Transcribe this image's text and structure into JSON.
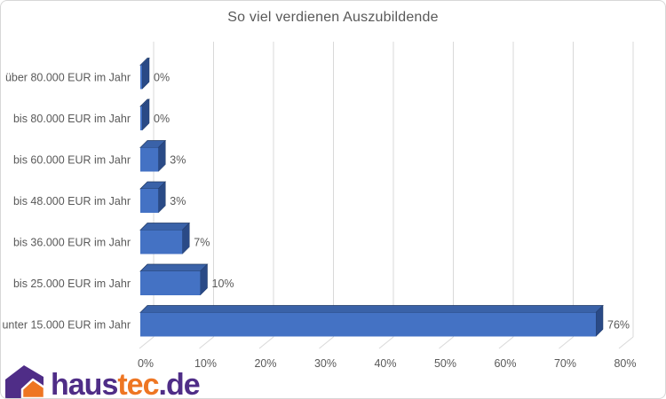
{
  "chart_data": {
    "type": "bar",
    "orientation": "horizontal",
    "style": "3d",
    "title": "So viel verdienen Auszubildende",
    "categories": [
      "über 80.000 EUR im Jahr",
      "bis 80.000 EUR im Jahr",
      "bis 60.000 EUR im Jahr",
      "bis 48.000 EUR im Jahr",
      "bis 36.000 EUR im Jahr",
      "bis 25.000 EUR im Jahr",
      "unter 15.000 EUR im Jahr"
    ],
    "values": [
      0,
      0,
      3,
      3,
      7,
      10,
      76
    ],
    "data_labels": [
      "0%",
      "0%",
      "3%",
      "3%",
      "7%",
      "10%",
      "76%"
    ],
    "x_tick_values": [
      0,
      10,
      20,
      30,
      40,
      50,
      60,
      70,
      80
    ],
    "x_tick_labels": [
      "0%",
      "10%",
      "20%",
      "30%",
      "40%",
      "50%",
      "60%",
      "70%",
      "80%"
    ],
    "xlim": [
      0,
      80
    ],
    "grid": true,
    "legend": false,
    "colors": {
      "bar_front": "#4472c4",
      "bar_top": "#3a62a8",
      "bar_side": "#2a4a86",
      "bar_edge": "#1f3864",
      "gridline": "#d9d9d9",
      "text": "#595959",
      "background": "#ffffff",
      "border": "#d7d7d7"
    }
  },
  "logo": {
    "icon": "house-icon",
    "part1": "haus",
    "part2": "tec",
    "part3": ".de",
    "colors": {
      "purple": "#4f2d87",
      "orange": "#ee7623"
    }
  }
}
